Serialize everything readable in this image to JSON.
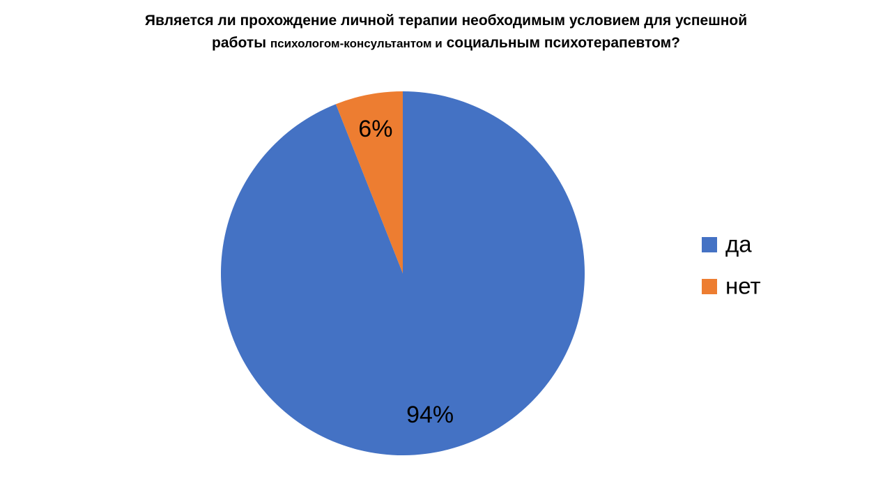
{
  "chart_data": {
    "type": "pie",
    "title": [
      "Является ли прохождение личной терапии необходимым условием для успешной",
      "работы",
      "психологом-консультантом и",
      "социальным психотерапевтом?"
    ],
    "categories": [
      "да",
      "нет"
    ],
    "values": [
      94,
      6
    ],
    "value_labels": [
      "94%",
      "6%"
    ],
    "colors": [
      "#4472c4",
      "#ed7d31"
    ],
    "legend": "right"
  }
}
